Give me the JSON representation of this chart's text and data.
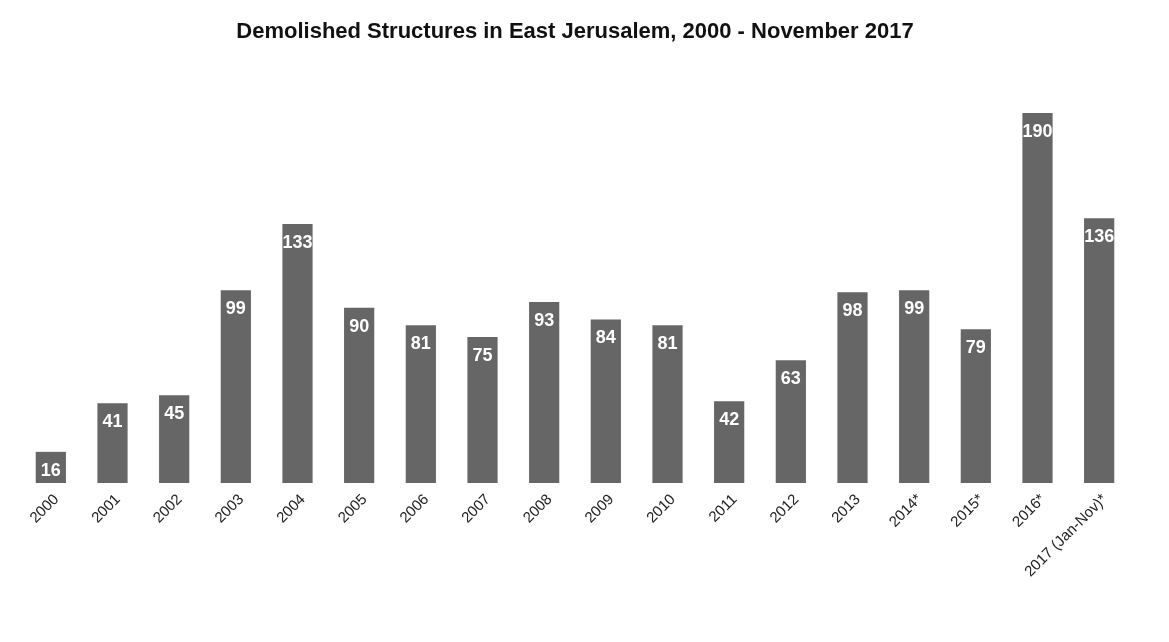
{
  "chart_data": {
    "type": "bar",
    "title": "Demolished Structures in East Jerusalem, 2000 - November 2017",
    "categories": [
      "2000",
      "2001",
      "2002",
      "2003",
      "2004",
      "2005",
      "2006",
      "2007",
      "2008",
      "2009",
      "2010",
      "2011",
      "2012",
      "2013",
      "2014*",
      "2015*",
      "2016*",
      "2017 (Jan-Nov)*"
    ],
    "values": [
      16,
      41,
      45,
      99,
      133,
      90,
      81,
      75,
      93,
      84,
      81,
      42,
      63,
      98,
      99,
      79,
      190,
      136
    ],
    "color": "#666666",
    "data_labels": true
  }
}
